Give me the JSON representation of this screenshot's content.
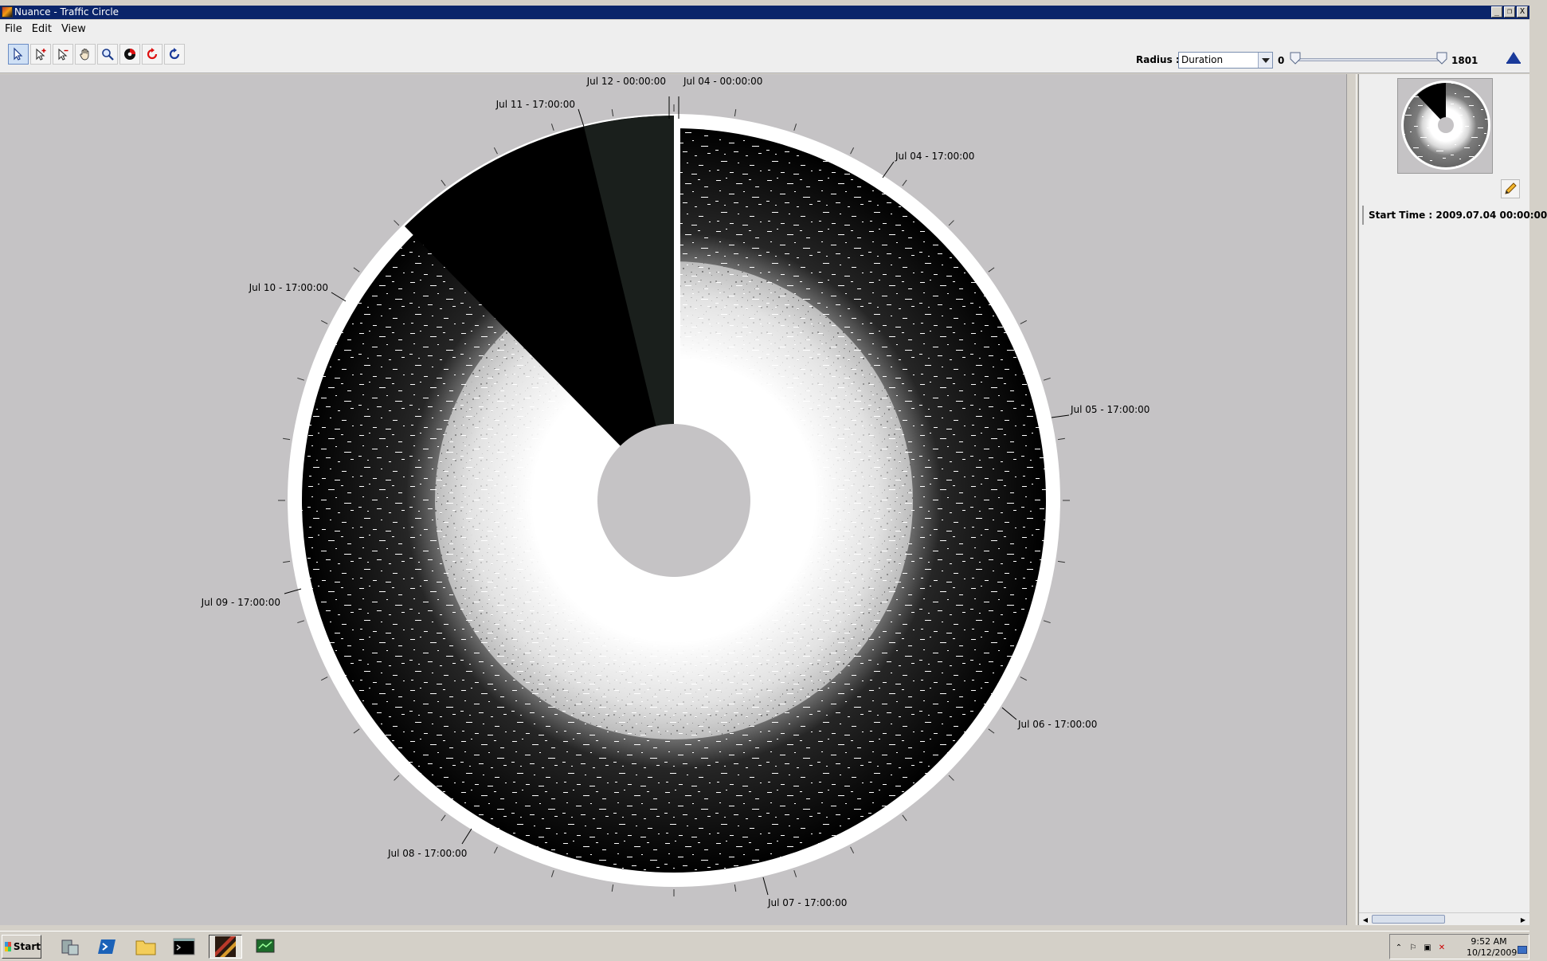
{
  "window": {
    "title": "Nuance - Traffic Circle",
    "minimize": "_",
    "restore": "❐",
    "close": "X"
  },
  "menu": [
    "File",
    "Edit",
    "View"
  ],
  "toolbar": {
    "tools": [
      {
        "name": "select-arrow-icon"
      },
      {
        "name": "add-select-arrow-icon"
      },
      {
        "name": "subtract-select-arrow-icon"
      },
      {
        "name": "pan-hand-icon"
      },
      {
        "name": "zoom-magnifier-icon"
      },
      {
        "name": "color-wheel-icon"
      },
      {
        "name": "refresh-red-icon"
      },
      {
        "name": "refresh-blue-icon"
      }
    ],
    "radius_label": "Radius :",
    "radius_value": "Duration",
    "slider_min": "0",
    "slider_max": "1801",
    "slider_low_fraction": 0.0,
    "slider_high_fraction": 1.0
  },
  "circle": {
    "labels": [
      {
        "text": "Jul 04 - 00:00:00"
      },
      {
        "text": "Jul 04 - 17:00:00"
      },
      {
        "text": "Jul 05 - 17:00:00"
      },
      {
        "text": "Jul 06 - 17:00:00"
      },
      {
        "text": "Jul 07 - 17:00:00"
      },
      {
        "text": "Jul 08 - 17:00:00"
      },
      {
        "text": "Jul 09 - 17:00:00"
      },
      {
        "text": "Jul 10 - 17:00:00"
      },
      {
        "text": "Jul 11 - 17:00:00"
      },
      {
        "text": "Jul 12 - 00:00:00"
      }
    ],
    "colors": {
      "background": "#c5c3c5",
      "traffic": "#000000",
      "ring": "#ffffff",
      "highlight": "#1a1f1c"
    }
  },
  "sidebar": {
    "start_time": "Start Time : 2009.07.04 00:00:00"
  },
  "taskbar": {
    "start": "Start",
    "apps": [
      "server-manager-icon",
      "powershell-icon",
      "explorer-folder-icon",
      "command-prompt-icon",
      "nuance-app-icon",
      "network-monitor-icon"
    ],
    "clock_time": "9:52 AM",
    "clock_date": "10/12/2009"
  }
}
